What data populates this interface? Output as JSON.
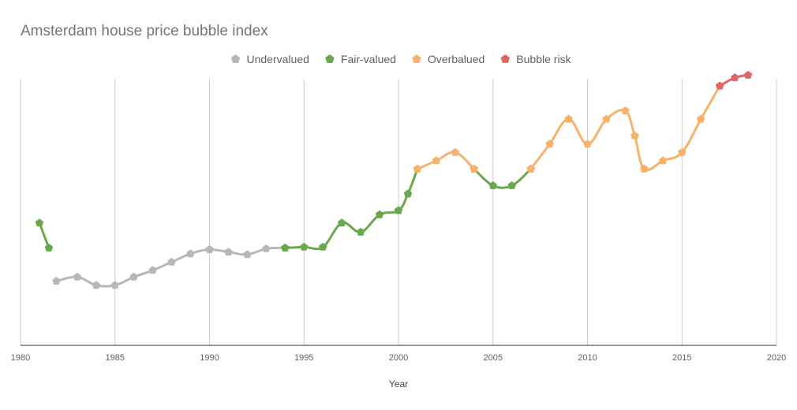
{
  "chart_data": {
    "type": "line",
    "title": "Amsterdam house price bubble index",
    "xlabel": "Year",
    "ylabel": "",
    "xlim": [
      1980,
      2020
    ],
    "ylim": [
      -1.5,
      1.5
    ],
    "x_ticks": [
      1980,
      1985,
      1990,
      1995,
      2000,
      2005,
      2010,
      2015,
      2020
    ],
    "y_ticks_shown": false,
    "grid": "vertical",
    "legend_position": "top",
    "series": [
      {
        "name": "Undervalued",
        "color": "#b7b7b7",
        "points": [
          [
            1981.9,
            -0.85
          ],
          [
            1983,
            -0.8
          ],
          [
            1984,
            -0.9
          ],
          [
            1985,
            -0.9
          ],
          [
            1986,
            -0.8
          ],
          [
            1987,
            -0.72
          ],
          [
            1988,
            -0.62
          ],
          [
            1989,
            -0.52
          ],
          [
            1990,
            -0.47
          ],
          [
            1991,
            -0.5
          ],
          [
            1992,
            -0.53
          ],
          [
            1993,
            -0.46
          ],
          [
            1994,
            -0.45
          ]
        ]
      },
      {
        "name": "Fair-valued",
        "color": "#6aa84f",
        "points": [
          [
            1981,
            -0.15
          ],
          [
            1981.5,
            -0.45
          ],
          [
            1994,
            -0.45
          ],
          [
            1995,
            -0.44
          ],
          [
            1996,
            -0.44
          ],
          [
            1997,
            -0.15
          ],
          [
            1998,
            -0.26
          ],
          [
            1999,
            -0.05
          ],
          [
            2000,
            0.0
          ],
          [
            2000.5,
            0.2
          ],
          [
            2001,
            0.5
          ],
          [
            2004,
            0.5
          ],
          [
            2005,
            0.3
          ],
          [
            2006,
            0.3
          ],
          [
            2007,
            0.5
          ]
        ]
      },
      {
        "name": "Overbalued",
        "color": "#f6b26b",
        "points": [
          [
            2001,
            0.5
          ],
          [
            2002,
            0.6
          ],
          [
            2003,
            0.7
          ],
          [
            2004,
            0.5
          ],
          [
            2007,
            0.5
          ],
          [
            2008,
            0.8
          ],
          [
            2009,
            1.1
          ],
          [
            2010,
            0.8
          ],
          [
            2011,
            1.1
          ],
          [
            2012,
            1.2
          ],
          [
            2012.5,
            0.9
          ],
          [
            2013,
            0.5
          ],
          [
            2014,
            0.6
          ],
          [
            2015,
            0.7
          ],
          [
            2016,
            1.1
          ],
          [
            2017,
            1.5
          ]
        ]
      },
      {
        "name": "Bubble risk",
        "color": "#e06666",
        "points": [
          [
            2017,
            1.5
          ],
          [
            2017.8,
            1.6
          ],
          [
            2018.5,
            1.63
          ]
        ]
      }
    ]
  }
}
